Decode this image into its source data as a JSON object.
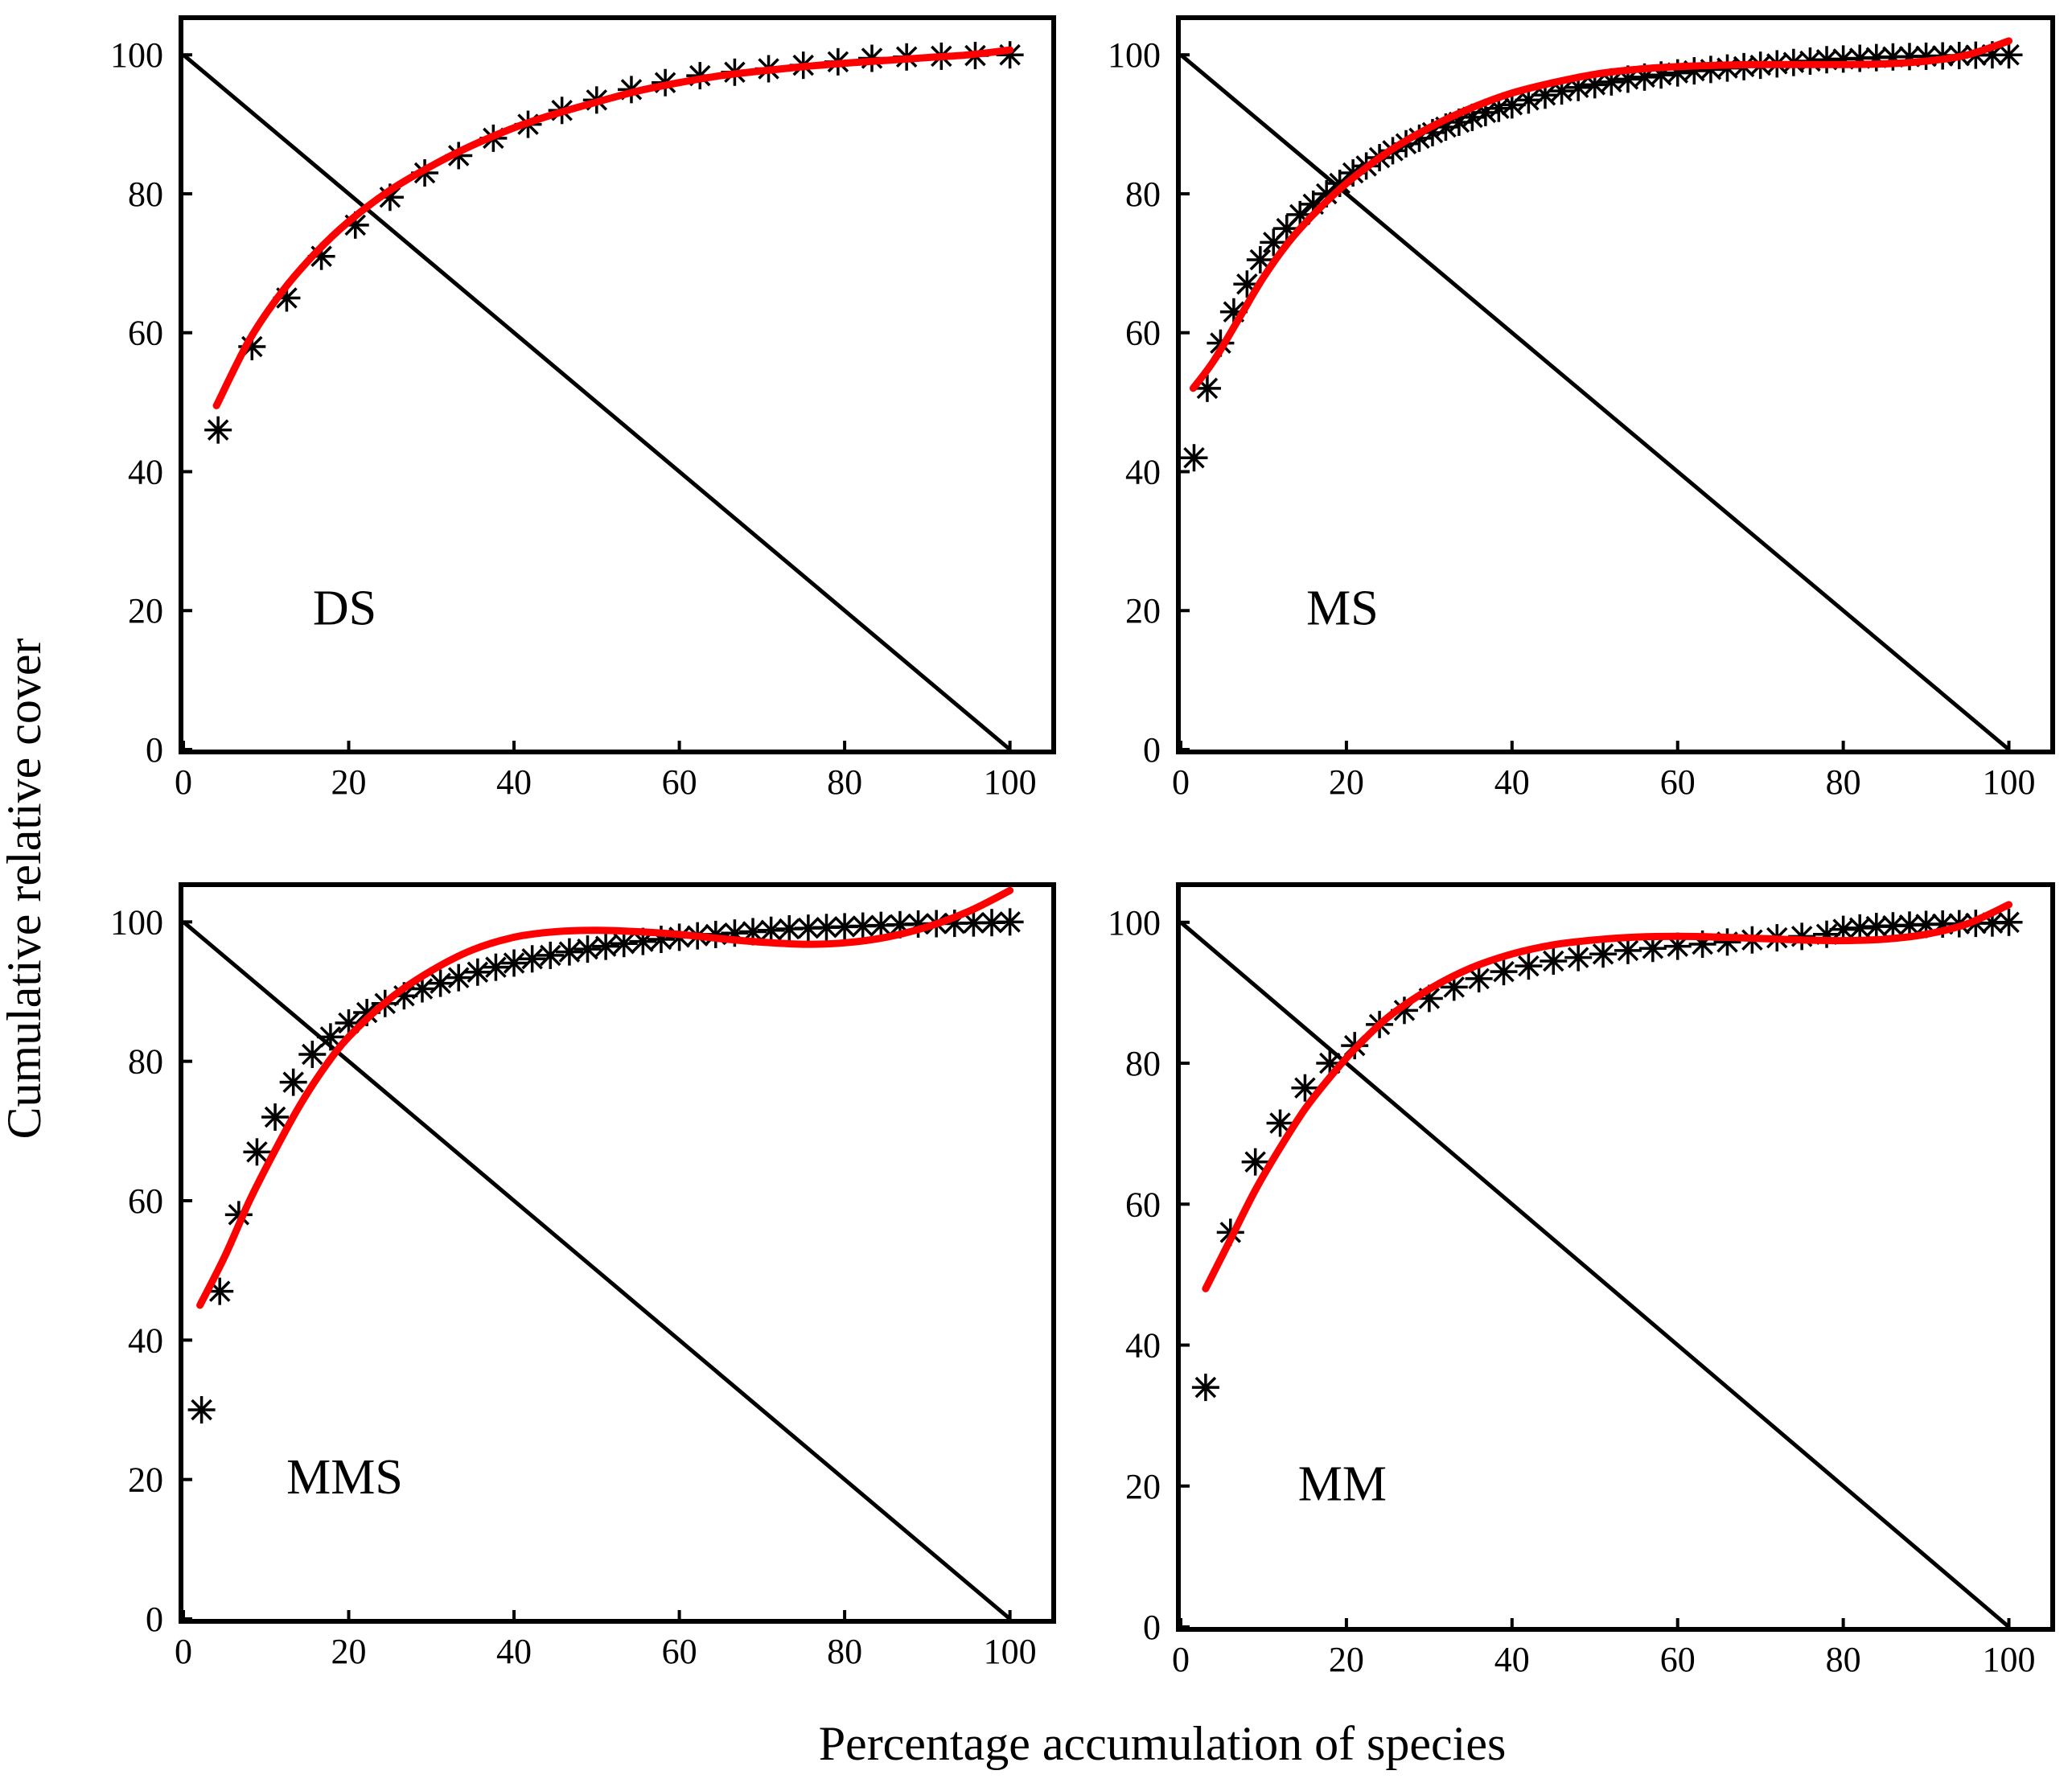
{
  "figure": {
    "ylabel": "Cumulative relative cover",
    "xlabel": "Percentage accumulation of species"
  },
  "colors": {
    "fit": "#ff0000",
    "points": "#000000",
    "axes": "#000000"
  },
  "chart_data": [
    {
      "type": "scatter",
      "label": "DS",
      "xlim": [
        0,
        105
      ],
      "ylim": [
        0,
        105
      ],
      "xticks": [
        "0",
        "20",
        "40",
        "60",
        "80",
        "100"
      ],
      "yticks": [
        "0",
        "20",
        "40",
        "60",
        "80",
        "100"
      ],
      "reference_line": {
        "from": [
          0,
          100
        ],
        "to": [
          100,
          0
        ]
      },
      "points": {
        "x": [
          4.2,
          8.3,
          12.5,
          16.7,
          20.8,
          25,
          29.2,
          33.3,
          37.5,
          41.7,
          45.8,
          50,
          54.2,
          58.3,
          62.5,
          66.7,
          70.8,
          75,
          79.2,
          83.3,
          87.5,
          91.7,
          95.8,
          100
        ],
        "y": [
          46,
          58,
          65,
          71,
          75.5,
          79.5,
          83,
          85.5,
          88,
          90,
          92,
          93.5,
          95,
          96,
          97,
          97.5,
          98,
          98.5,
          99,
          99.5,
          99.7,
          99.8,
          99.9,
          100
        ]
      },
      "fit": {
        "x": [
          4,
          8,
          12,
          16,
          20,
          25,
          30,
          35,
          40,
          45,
          50,
          55,
          60,
          65,
          70,
          75,
          80,
          85,
          90,
          95,
          100
        ],
        "y": [
          49.5,
          59,
          66,
          71.5,
          76,
          80.5,
          84,
          87,
          89.5,
          91.5,
          93.2,
          94.8,
          96,
          97,
          97.7,
          98.3,
          98.8,
          99.2,
          99.6,
          100,
          100.7
        ]
      }
    },
    {
      "type": "scatter",
      "label": "MS",
      "xlim": [
        0,
        105
      ],
      "ylim": [
        0,
        105
      ],
      "xticks": [
        "0",
        "20",
        "40",
        "60",
        "80",
        "100"
      ],
      "yticks": [
        "0",
        "20",
        "40",
        "60",
        "80",
        "100"
      ],
      "reference_line": {
        "from": [
          0,
          100
        ],
        "to": [
          100,
          0
        ]
      },
      "points": {
        "x": [
          1.6,
          3.2,
          4.8,
          6.4,
          8,
          9.6,
          11.2,
          12.8,
          14.4,
          16,
          17.6,
          19.2,
          20.8,
          22.4,
          24,
          25.6,
          27.2,
          28.8,
          30.4,
          32,
          33.6,
          35.2,
          36.8,
          38.4,
          40,
          42,
          44,
          46,
          48,
          50,
          52,
          54,
          56,
          58,
          60,
          62,
          64,
          66,
          68,
          70,
          72,
          74,
          76,
          78,
          80,
          82,
          84,
          86,
          88,
          90,
          92,
          94,
          96,
          98,
          100
        ],
        "y": [
          42,
          52,
          58.5,
          63,
          67,
          70.5,
          73,
          75,
          77,
          78.5,
          80,
          81.5,
          83,
          84,
          85.2,
          86.2,
          87.2,
          88,
          88.8,
          89.6,
          90.3,
          91,
          91.7,
          92.3,
          92.8,
          93.5,
          94.2,
          94.8,
          95.3,
          95.7,
          96.1,
          96.5,
          96.8,
          97.1,
          97.4,
          97.7,
          97.9,
          98.1,
          98.3,
          98.5,
          98.7,
          98.9,
          99.1,
          99.3,
          99.4,
          99.5,
          99.6,
          99.7,
          99.75,
          99.8,
          99.85,
          99.9,
          99.95,
          100,
          100
        ]
      },
      "fit": {
        "x": [
          1.5,
          4,
          7,
          10,
          13,
          16,
          20,
          25,
          30,
          35,
          40,
          45,
          50,
          55,
          60,
          65,
          70,
          75,
          80,
          85,
          90,
          95,
          100
        ],
        "y": [
          52,
          56,
          62,
          68,
          73,
          77,
          81.5,
          86,
          89.5,
          92.3,
          94.5,
          96,
          97.2,
          97.9,
          98.3,
          98.5,
          98.6,
          98.6,
          98.6,
          98.7,
          99.1,
          100,
          102
        ]
      }
    },
    {
      "type": "scatter",
      "label": "MMS",
      "xlim": [
        0,
        105
      ],
      "ylim": [
        0,
        105
      ],
      "xticks": [
        "0",
        "20",
        "40",
        "60",
        "80",
        "100"
      ],
      "yticks": [
        "0",
        "20",
        "40",
        "60",
        "80",
        "100"
      ],
      "reference_line": {
        "from": [
          0,
          100
        ],
        "to": [
          100,
          0
        ]
      },
      "points": {
        "x": [
          2.2,
          4.4,
          6.7,
          8.9,
          11.1,
          13.3,
          15.6,
          17.8,
          20,
          22.2,
          24.4,
          26.7,
          28.9,
          31.1,
          33.3,
          35.6,
          37.8,
          40,
          42.2,
          44.4,
          46.7,
          48.9,
          51.1,
          53.3,
          55.6,
          57.8,
          60,
          62.2,
          64.4,
          66.7,
          68.9,
          71.1,
          73.3,
          75.6,
          77.8,
          80,
          82.2,
          84.4,
          86.7,
          88.9,
          91.1,
          93.3,
          95.6,
          97.8,
          100
        ],
        "y": [
          30,
          47,
          58,
          67,
          72,
          77,
          81,
          83.5,
          85.5,
          87,
          88.3,
          89.4,
          90.4,
          91.2,
          92,
          92.8,
          93.5,
          94.1,
          94.7,
          95.2,
          95.7,
          96.1,
          96.5,
          96.9,
          97.2,
          97.5,
          97.8,
          98,
          98.2,
          98.4,
          98.6,
          98.8,
          99,
          99.1,
          99.2,
          99.3,
          99.4,
          99.5,
          99.6,
          99.7,
          99.75,
          99.8,
          99.85,
          99.9,
          100
        ]
      },
      "fit": {
        "x": [
          2,
          5,
          8,
          11,
          14,
          17,
          20,
          25,
          30,
          35,
          40,
          45,
          50,
          55,
          60,
          65,
          70,
          75,
          80,
          85,
          90,
          95,
          100
        ],
        "y": [
          45,
          52,
          60,
          67,
          73.5,
          79,
          83.5,
          89,
          93,
          96,
          97.8,
          98.6,
          98.8,
          98.6,
          98.2,
          97.6,
          97.1,
          96.8,
          97,
          97.8,
          99.3,
          101.5,
          104.5
        ]
      }
    },
    {
      "type": "scatter",
      "label": "MM",
      "xlim": [
        0,
        105
      ],
      "ylim": [
        0,
        105
      ],
      "xticks": [
        "0",
        "20",
        "40",
        "60",
        "80",
        "100"
      ],
      "yticks": [
        "0",
        "20",
        "40",
        "60",
        "80",
        "100"
      ],
      "reference_line": {
        "from": [
          0,
          100
        ],
        "to": [
          100,
          0
        ]
      },
      "points": {
        "x": [
          3,
          6,
          9,
          12,
          15,
          18,
          21,
          24,
          27,
          30,
          33,
          36,
          39,
          42,
          45,
          48,
          51,
          54,
          57,
          60,
          63,
          66,
          69,
          72,
          75,
          78,
          80,
          82,
          84,
          86,
          88,
          90,
          92,
          94,
          96,
          98,
          100
        ],
        "y": [
          34,
          56,
          66,
          71.5,
          76.5,
          80,
          82.5,
          85.5,
          87.5,
          89.2,
          90.8,
          92,
          93,
          93.8,
          94.5,
          95,
          95.5,
          96,
          96.3,
          96.6,
          96.9,
          97.2,
          97.5,
          97.8,
          98,
          98.3,
          99,
          99.2,
          99.4,
          99.5,
          99.6,
          99.7,
          99.75,
          99.8,
          99.85,
          99.9,
          100
        ]
      },
      "fit": {
        "x": [
          3,
          6,
          9,
          12,
          15,
          18,
          21,
          25,
          30,
          35,
          40,
          45,
          50,
          55,
          60,
          65,
          70,
          75,
          80,
          85,
          90,
          95,
          100
        ],
        "y": [
          48,
          55,
          62,
          68,
          73.5,
          78,
          82,
          86.5,
          90.5,
          93.5,
          95.5,
          96.8,
          97.5,
          97.9,
          98,
          97.9,
          97.7,
          97.5,
          97.4,
          97.6,
          98.3,
          99.8,
          102.5
        ]
      }
    }
  ]
}
